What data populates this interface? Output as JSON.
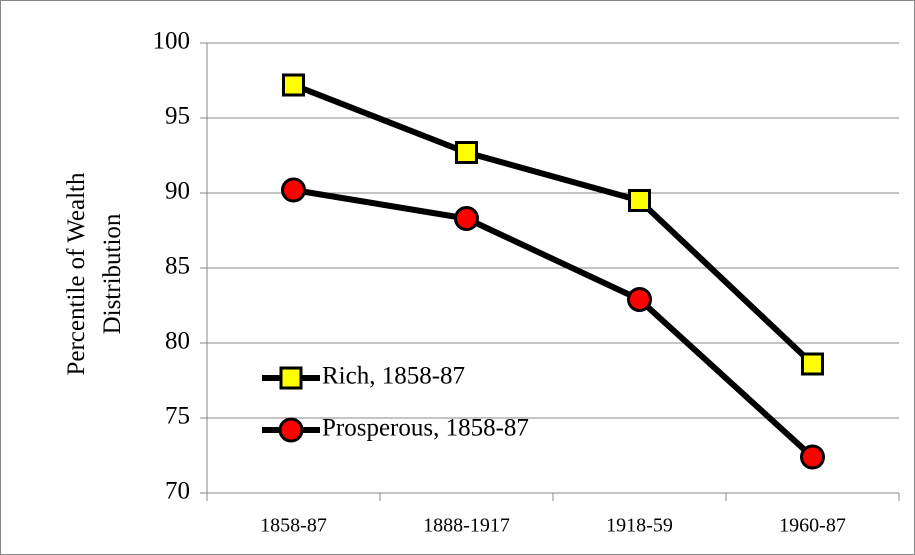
{
  "chart_data": {
    "type": "line",
    "y_label": "Percentile of Wealth Distribution",
    "categories": [
      "1858-87",
      "1888-1917",
      "1918-59",
      "1960-87"
    ],
    "series": [
      {
        "name": "Rich, 1858-87",
        "color": "#ffff00",
        "marker": "square",
        "values": [
          97.2,
          92.7,
          89.5,
          78.6
        ]
      },
      {
        "name": "Prosperous, 1858-87",
        "color": "#ff0000",
        "marker": "circle",
        "values": [
          90.2,
          88.3,
          82.9,
          72.4
        ]
      }
    ],
    "line_color": "#000000",
    "ylim": [
      70,
      100
    ],
    "yticks": [
      70,
      75,
      80,
      85,
      90,
      95,
      100
    ],
    "grid": true,
    "legend": "left"
  }
}
